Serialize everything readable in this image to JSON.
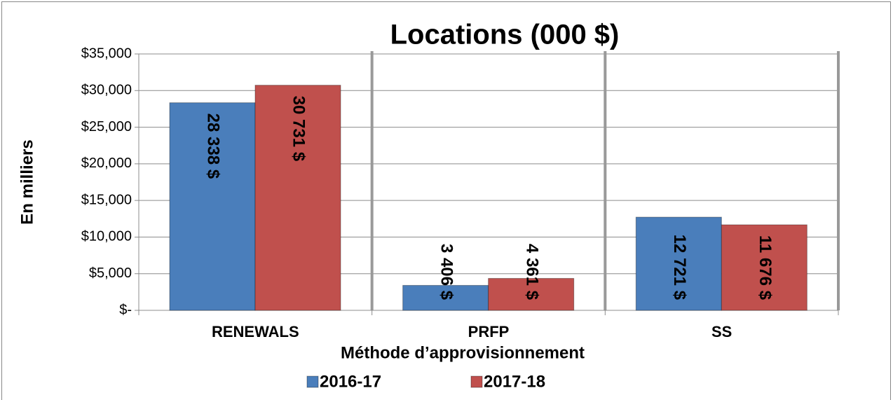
{
  "chart_data": {
    "type": "bar",
    "title": "Locations (000 $)",
    "x_label": "Méthode d’approvisionnement",
    "y_label": "En milliers",
    "categories": [
      "RENEWALS",
      "PRFP",
      "SS"
    ],
    "series": [
      {
        "name": "2016-17",
        "color": "#4a7ebb",
        "values": [
          28338,
          3406,
          12721
        ],
        "value_labels": [
          "28 338 $",
          "3 406 $",
          "12 721 $"
        ]
      },
      {
        "name": "2017-18",
        "color": "#c0504d",
        "values": [
          30731,
          4361,
          11676
        ],
        "value_labels": [
          "30 731 $",
          "4 361 $",
          "11 676 $"
        ]
      }
    ],
    "ylim": [
      0,
      35000
    ],
    "yticks": [
      {
        "value": 0,
        "label": "$-"
      },
      {
        "value": 5000,
        "label": "$5,000"
      },
      {
        "value": 10000,
        "label": "$10,000"
      },
      {
        "value": 15000,
        "label": "$15,000"
      },
      {
        "value": 20000,
        "label": "$20,000"
      },
      {
        "value": 25000,
        "label": "$25,000"
      },
      {
        "value": 30000,
        "label": "$30,000"
      },
      {
        "value": 35000,
        "label": "$35,000"
      }
    ],
    "grid": true,
    "legend": "bottom"
  }
}
